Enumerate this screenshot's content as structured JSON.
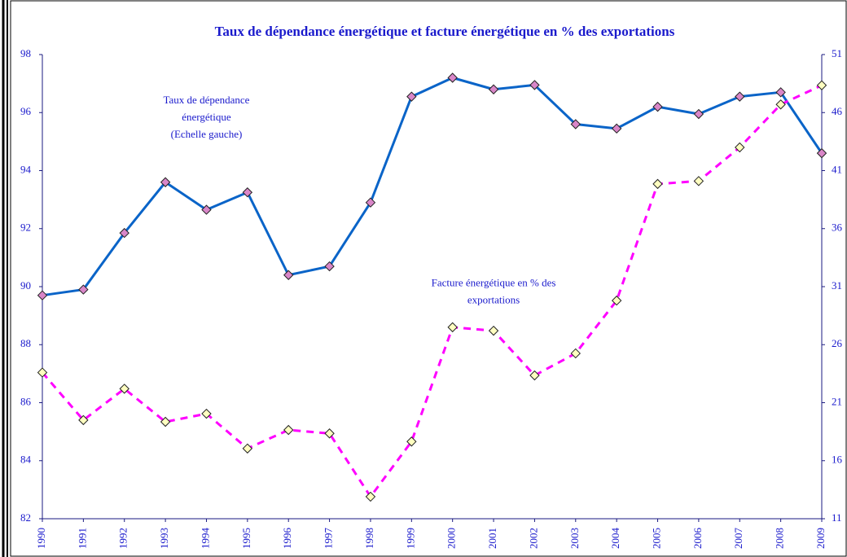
{
  "chart_data": {
    "type": "line",
    "title": "Taux de dépendance énergétique et facture énergétique en % des exportations",
    "categories": [
      "1990",
      "1991",
      "1992",
      "1993",
      "1994",
      "1995",
      "1996",
      "1997",
      "1998",
      "1999",
      "2000",
      "2001",
      "2002",
      "2003",
      "2004",
      "2005",
      "2006",
      "2007",
      "2008",
      "2009"
    ],
    "series": [
      {
        "color": "#0a64c8",
        "marker_color": "#d986c8",
        "dashed": false,
        "axis": "y",
        "values": [
          89.7,
          89.9,
          91.85,
          93.6,
          92.65,
          93.25,
          90.4,
          90.7,
          92.9,
          96.55,
          97.2,
          96.8,
          96.95,
          95.6,
          95.45,
          96.2,
          95.95,
          96.55,
          96.7,
          94.6
        ]
      },
      {
        "color": "#ff00ff",
        "marker_color": "#ffffc0",
        "dashed": true,
        "axis": "y2",
        "values": [
          23.6,
          19.5,
          22.2,
          19.35,
          20.05,
          17.05,
          18.65,
          18.35,
          12.9,
          17.65,
          27.5,
          27.2,
          23.35,
          25.25,
          29.8,
          39.85,
          40.1,
          43,
          46.7,
          48.35
        ]
      }
    ],
    "annotations": [
      {
        "lines": [
          "Taux de dépendance",
          "énergétique",
          "(Echelle gauche)"
        ],
        "x": "1994",
        "y": 96.4
      },
      {
        "lines": [
          "Facture énergétique en % des",
          "exportations"
        ],
        "x": "2001",
        "y": 90.1
      }
    ],
    "ylim": [
      82,
      98
    ],
    "yticks": [
      82,
      84,
      86,
      88,
      90,
      92,
      94,
      96,
      98
    ],
    "y2lim": [
      11,
      51
    ],
    "y2ticks": [
      11,
      16,
      21,
      26,
      31,
      36,
      41,
      46,
      51
    ],
    "grid": false
  }
}
